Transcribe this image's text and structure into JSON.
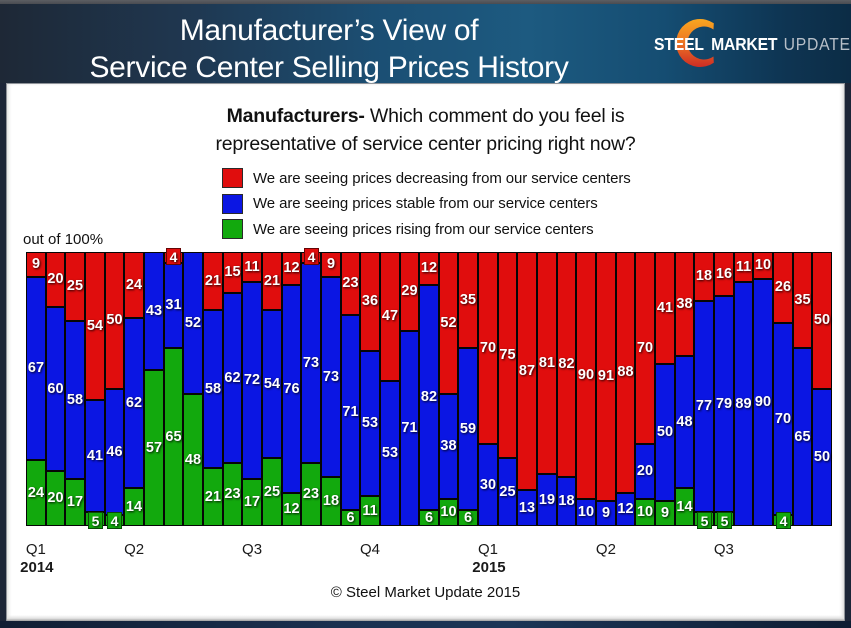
{
  "header": {
    "title_line1": "Manufacturer’s View of",
    "title_line2": "Service Center Selling Prices History",
    "logo": {
      "word1": "STEEL",
      "word2": "MARKET",
      "word3": "UPDATE"
    }
  },
  "question": {
    "bold": "Manufacturers-",
    "rest": " Which comment do you feel is",
    "line2": "representative of service center pricing right now?"
  },
  "legend": {
    "items": [
      {
        "color": "#e00d0d",
        "label": "We are seeing prices decreasing from our service centers"
      },
      {
        "color": "#0b16e3",
        "label": "We are seeing prices stable from our service centers"
      },
      {
        "color": "#12a90d",
        "label": "We are seeing prices rising from our service centers"
      }
    ]
  },
  "axis_note": "out of 100%",
  "copyright": "© Steel Market Update 2015",
  "colors": {
    "decreasing": "#e00d0d",
    "stable": "#0b16e3",
    "rising": "#12a90d"
  },
  "chart_data": {
    "type": "bar",
    "stacked": true,
    "ylim": [
      0,
      100
    ],
    "ylabel": "out of 100%",
    "title": "Manufacturers- Which comment do you feel is representative of service center pricing right now?",
    "categories_note": "41 consecutive weekly surveys, labeled by quarter of first survey in quarter",
    "series": [
      {
        "name": "We are seeing prices decreasing from our service centers",
        "color": "#e00d0d",
        "values": [
          9,
          20,
          25,
          54,
          50,
          24,
          0,
          4,
          0,
          21,
          15,
          11,
          21,
          12,
          4,
          9,
          23,
          36,
          47,
          29,
          12,
          52,
          35,
          70,
          75,
          87,
          81,
          82,
          90,
          91,
          88,
          70,
          41,
          38,
          18,
          16,
          11,
          10,
          26,
          35,
          50
        ]
      },
      {
        "name": "We are seeing prices stable from our service centers",
        "color": "#0b16e3",
        "values": [
          67,
          60,
          58,
          41,
          46,
          62,
          43,
          31,
          52,
          58,
          62,
          72,
          54,
          76,
          73,
          73,
          71,
          53,
          53,
          71,
          82,
          38,
          59,
          30,
          25,
          13,
          19,
          18,
          10,
          9,
          12,
          20,
          50,
          48,
          77,
          79,
          89,
          90,
          70,
          65,
          50
        ]
      },
      {
        "name": "We are seeing prices rising from our service centers",
        "color": "#12a90d",
        "values": [
          24,
          20,
          17,
          5,
          4,
          14,
          57,
          65,
          48,
          21,
          23,
          17,
          25,
          12,
          23,
          18,
          6,
          11,
          0,
          0,
          6,
          10,
          6,
          0,
          0,
          0,
          0,
          0,
          0,
          0,
          0,
          10,
          9,
          14,
          5,
          5,
          0,
          0,
          4,
          0,
          0
        ]
      }
    ],
    "quarter_ticks": [
      {
        "label": "Q1",
        "year": "2014",
        "bar": 1
      },
      {
        "label": "Q2",
        "year": "",
        "bar": 6
      },
      {
        "label": "Q3",
        "year": "",
        "bar": 12
      },
      {
        "label": "Q4",
        "year": "",
        "bar": 18
      },
      {
        "label": "Q1",
        "year": "2015",
        "bar": 24
      },
      {
        "label": "Q2",
        "year": "",
        "bar": 30
      },
      {
        "label": "Q3",
        "year": "",
        "bar": 36
      }
    ]
  }
}
